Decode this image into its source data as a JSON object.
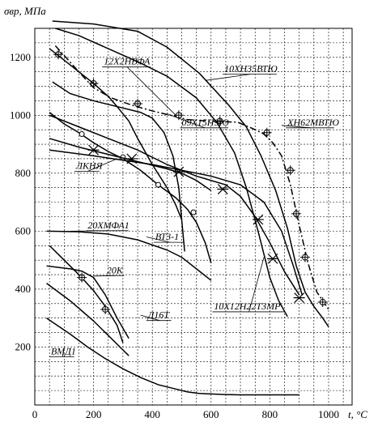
{
  "chart_data": {
    "type": "line",
    "title": "",
    "xlabel": "t, °C",
    "ylabel": "σвр, МПа",
    "xlim": [
      0,
      1080
    ],
    "ylim": [
      0,
      1300
    ],
    "grid": true,
    "x_ticks": [
      {
        "value": 0,
        "label": "0"
      },
      {
        "value": 200,
        "label": "200"
      },
      {
        "value": 400,
        "label": "400"
      },
      {
        "value": 600,
        "label": "600"
      },
      {
        "value": 800,
        "label": "800"
      },
      {
        "value": 1000,
        "label": "1000"
      }
    ],
    "y_ticks": [
      {
        "value": 200,
        "label": "200"
      },
      {
        "value": 400,
        "label": "400"
      },
      {
        "value": 600,
        "label": "600"
      },
      {
        "value": 800,
        "label": "800"
      },
      {
        "value": 1000,
        "label": "1000"
      },
      {
        "value": 1200,
        "label": "1200"
      }
    ],
    "labeled_series": [
      {
        "name": "12Х2НВФА",
        "label_at": [
          235,
          1175
        ],
        "anchor": [
          480,
          1000
        ],
        "line_style": "dashdot",
        "marker": "circle-cross",
        "x": [
          70,
          110,
          150,
          200,
          260,
          330,
          400,
          470,
          520,
          560,
          600,
          640,
          690,
          740,
          780,
          810,
          840,
          870,
          900,
          930,
          960,
          1000
        ],
        "y": [
          1240,
          1195,
          1150,
          1095,
          1060,
          1035,
          1015,
          998,
          985,
          982,
          980,
          978,
          976,
          955,
          935,
          905,
          860,
          760,
          620,
          490,
          390,
          330
        ],
        "markers_x": [
          80,
          200,
          350,
          490,
          630,
          790,
          870,
          890,
          920,
          980
        ],
        "markers_y": [
          1210,
          1110,
          1040,
          1000,
          980,
          940,
          810,
          660,
          510,
          355
        ]
      },
      {
        "name": "10ХН35ВТЮ",
        "label_at": [
          645,
          1150
        ],
        "anchor": [
          580,
          1120
        ],
        "x": [
          70,
          150,
          250,
          350,
          450,
          550,
          620,
          680,
          720,
          760,
          800,
          830,
          860
        ],
        "y": [
          1300,
          1275,
          1230,
          1185,
          1135,
          1060,
          975,
          870,
          750,
          600,
          440,
          360,
          305
        ]
      },
      {
        "name": "ХН62МВТЮ",
        "label_at": [
          860,
          965
        ],
        "anchor": [
          840,
          965
        ],
        "x": [
          60,
          200,
          350,
          450,
          560,
          660,
          720,
          770,
          820,
          860,
          890,
          920,
          950,
          980,
          1000
        ],
        "y": [
          1325,
          1315,
          1290,
          1235,
          1145,
          1035,
          960,
          860,
          740,
          610,
          480,
          390,
          340,
          300,
          270
        ]
      },
      {
        "name": "09Х15Н9Ю",
        "label_at": [
          500,
          965
        ],
        "anchor": [
          450,
          1005
        ],
        "x": [
          60,
          120,
          200,
          280,
          360,
          400,
          440,
          470,
          490,
          500,
          510
        ],
        "y": [
          1115,
          1075,
          1050,
          1030,
          1010,
          990,
          940,
          860,
          750,
          640,
          530
        ]
      },
      {
        "name": "ЛКНЯ",
        "label_at": [
          140,
          815
        ],
        "anchor": [
          280,
          850
        ],
        "marker": "circle",
        "x": [
          50,
          100,
          150,
          200,
          250,
          300,
          360,
          420,
          480,
          520,
          550,
          580,
          600
        ],
        "y": [
          1010,
          970,
          940,
          905,
          875,
          850,
          810,
          760,
          715,
          675,
          630,
          560,
          490
        ],
        "markers_x": [
          160,
          300,
          420,
          540
        ],
        "markers_y": [
          935,
          855,
          760,
          665
        ]
      },
      {
        "name": "20ХМФА1",
        "label_at": [
          180,
          610
        ],
        "anchor": [
          120,
          600
        ],
        "x": [
          50,
          150,
          250,
          350,
          450,
          500,
          550,
          600
        ],
        "y": [
          920,
          890,
          865,
          840,
          815,
          800,
          775,
          740
        ]
      },
      {
        "name": "ВТ3-1",
        "label_at": [
          410,
          570
        ],
        "anchor": [
          380,
          580
        ],
        "x": [
          50,
          150,
          250,
          350,
          450,
          550,
          650,
          700,
          750,
          800,
          850,
          900
        ],
        "y": [
          1000,
          960,
          920,
          880,
          830,
          790,
          760,
          720,
          650,
          560,
          460,
          380
        ],
        "markers_x": [
          200,
          330,
          490,
          640,
          760,
          810,
          900
        ],
        "markers_y": [
          880,
          850,
          805,
          745,
          640,
          505,
          370
        ],
        "marker": "star"
      },
      {
        "name": "10Х12Н22Т3МР",
        "label_at": [
          610,
          330
        ],
        "anchor": [
          780,
          510
        ],
        "x": [
          50,
          200,
          400,
          500,
          600,
          700,
          780,
          840,
          880,
          910
        ],
        "y": [
          880,
          860,
          830,
          810,
          790,
          760,
          700,
          600,
          480,
          380
        ]
      },
      {
        "name": "20К",
        "label_at": [
          245,
          455
        ],
        "anchor": [
          200,
          445
        ],
        "x": [
          40,
          150,
          250,
          350,
          450,
          500,
          550,
          600
        ],
        "y": [
          600,
          598,
          590,
          570,
          535,
          510,
          470,
          430
        ]
      },
      {
        "name": "Д16Т",
        "label_at": [
          385,
          300
        ],
        "anchor": [
          360,
          310
        ],
        "x": [
          40,
          80,
          120,
          160,
          200,
          240,
          280,
          320
        ],
        "y": [
          480,
          475,
          470,
          462,
          440,
          380,
          300,
          230
        ]
      },
      {
        "name": "ВМД1",
        "label_at": [
          55,
          175
        ],
        "anchor": [
          100,
          200
        ],
        "x": [
          40,
          80,
          120,
          160,
          200,
          240,
          280,
          320
        ],
        "y": [
          420,
          390,
          360,
          325,
          290,
          250,
          210,
          170
        ]
      }
    ],
    "unlabeled_series": [
      {
        "x": [
          50,
          100,
          150,
          200,
          250,
          280,
          320,
          350,
          400,
          450,
          480,
          500
        ],
        "y": [
          1230,
          1190,
          1150,
          1110,
          1065,
          1030,
          980,
          920,
          830,
          750,
          690,
          640
        ]
      },
      {
        "x": [
          50,
          100,
          150,
          200,
          240,
          280,
          300
        ],
        "y": [
          550,
          500,
          450,
          395,
          340,
          275,
          215
        ],
        "markers_x": [
          160,
          240
        ],
        "markers_y": [
          440,
          330
        ],
        "marker": "circle-cross"
      },
      {
        "x": [
          40,
          120,
          180,
          240,
          300,
          360,
          420,
          480,
          520,
          560,
          600,
          650,
          700,
          750,
          800,
          850,
          900
        ],
        "y": [
          300,
          245,
          200,
          160,
          125,
          95,
          70,
          55,
          45,
          40,
          38,
          36,
          35,
          35,
          35,
          35,
          35
        ]
      }
    ]
  }
}
